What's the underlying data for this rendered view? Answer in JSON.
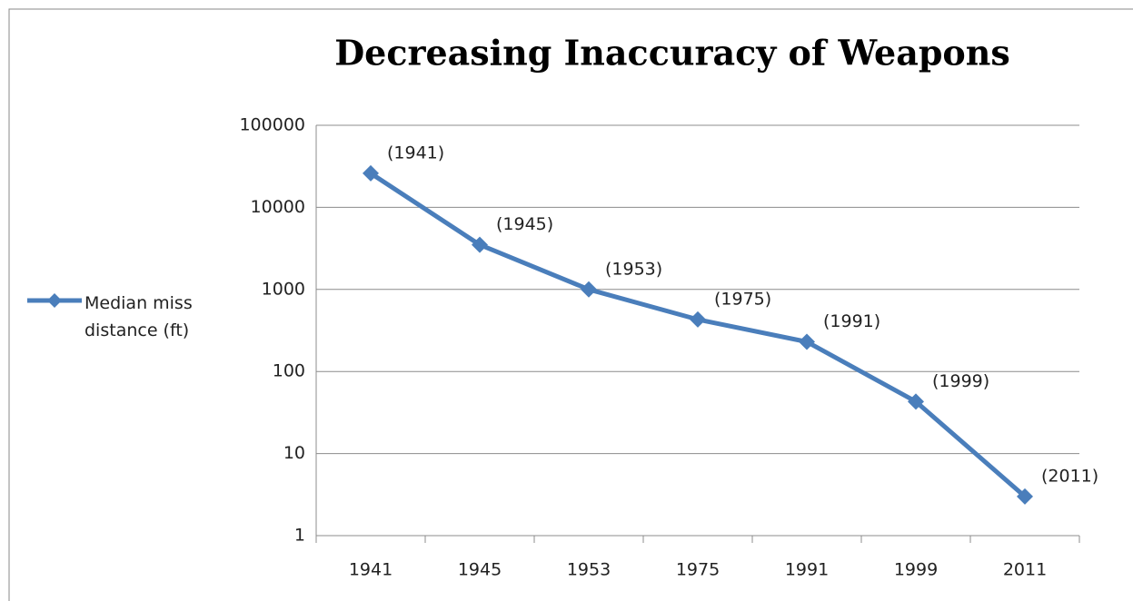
{
  "chart_data": {
    "type": "line",
    "title": "Decreasing Inaccuracy of Weapons",
    "categories": [
      "1941",
      "1945",
      "1953",
      "1975",
      "1991",
      "1999",
      "2011"
    ],
    "series": [
      {
        "name": "Median miss distance (ft)",
        "color": "#4a7ebb",
        "values": [
          26000,
          3500,
          1000,
          430,
          230,
          43,
          3
        ],
        "point_labels": [
          "(1941)",
          "(1945)",
          "(1953)",
          "(1975)",
          "(1991)",
          "(1999)",
          "(2011)"
        ]
      }
    ],
    "ylim": [
      1,
      100000
    ],
    "yticks": [
      1,
      10,
      100,
      1000,
      10000,
      100000
    ],
    "log_y": true,
    "grid": true,
    "legend": "left"
  }
}
